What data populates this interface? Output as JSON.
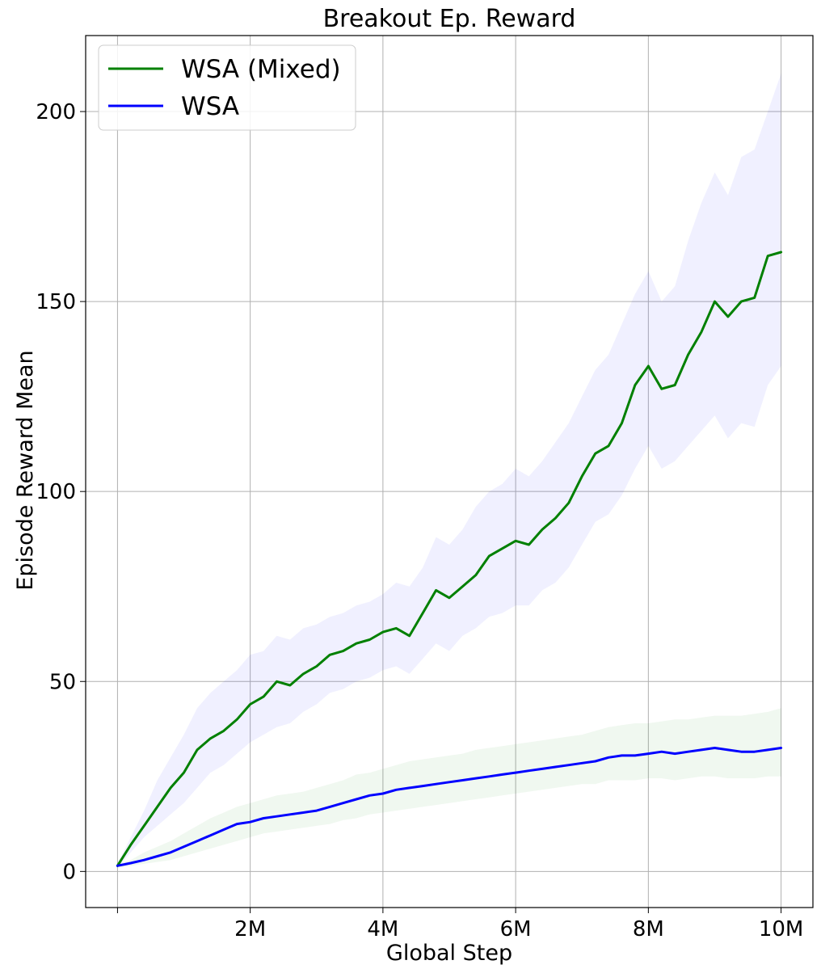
{
  "chart_data": {
    "type": "line",
    "title": "Breakout Ep. Reward",
    "xlabel": "Global Step",
    "ylabel": "Episode Reward Mean",
    "xlim": [
      -0.48,
      10.48
    ],
    "ylim": [
      -9.5,
      220
    ],
    "x_ticks": [
      {
        "value": 0,
        "label": ""
      },
      {
        "value": 2,
        "label": "2M"
      },
      {
        "value": 4,
        "label": "4M"
      },
      {
        "value": 6,
        "label": "6M"
      },
      {
        "value": 8,
        "label": "8M"
      },
      {
        "value": 10,
        "label": "10M"
      }
    ],
    "y_ticks": [
      {
        "value": 0,
        "label": "0"
      },
      {
        "value": 50,
        "label": "50"
      },
      {
        "value": 100,
        "label": "100"
      },
      {
        "value": 150,
        "label": "150"
      },
      {
        "value": 200,
        "label": "200"
      }
    ],
    "grid": true,
    "legend": {
      "position": "top-left"
    },
    "series": [
      {
        "name": "WSA (Mixed)",
        "color": "#008000",
        "band_color": "#0000ff",
        "band_opacity": 0.06,
        "x": [
          0,
          0.2,
          0.4,
          0.6,
          0.8,
          1.0,
          1.2,
          1.4,
          1.6,
          1.8,
          2.0,
          2.2,
          2.4,
          2.6,
          2.8,
          3.0,
          3.2,
          3.4,
          3.6,
          3.8,
          4.0,
          4.2,
          4.4,
          4.6,
          4.8,
          5.0,
          5.2,
          5.4,
          5.6,
          5.8,
          6.0,
          6.2,
          6.4,
          6.6,
          6.8,
          7.0,
          7.2,
          7.4,
          7.6,
          7.8,
          8.0,
          8.2,
          8.4,
          8.6,
          8.8,
          9.0,
          9.2,
          9.4,
          9.6,
          9.8,
          10.0
        ],
        "y": [
          1.5,
          7,
          12,
          17,
          22,
          26,
          32,
          35,
          37,
          40,
          44,
          46,
          50,
          49,
          52,
          54,
          57,
          58,
          60,
          61,
          63,
          64,
          62,
          68,
          74,
          72,
          75,
          78,
          83,
          85,
          87,
          86,
          90,
          93,
          97,
          104,
          110,
          112,
          118,
          128,
          133,
          127,
          128,
          136,
          142,
          150,
          146,
          150,
          151,
          162,
          163
        ],
        "upper": [
          2,
          9,
          16,
          24,
          30,
          36,
          43,
          47,
          50,
          53,
          57,
          58,
          62,
          61,
          64,
          65,
          67,
          68,
          70,
          71,
          73,
          76,
          75,
          80,
          88,
          86,
          90,
          96,
          100,
          102,
          106,
          104,
          108,
          113,
          118,
          125,
          132,
          136,
          144,
          152,
          158,
          150,
          154,
          166,
          176,
          184,
          178,
          188,
          190,
          200,
          210
        ],
        "lower": [
          1,
          5,
          9,
          12,
          15,
          18,
          22,
          26,
          28,
          31,
          34,
          36,
          38,
          39,
          42,
          44,
          47,
          48,
          50,
          51,
          53,
          54,
          52,
          56,
          60,
          58,
          62,
          64,
          67,
          68,
          70,
          70,
          74,
          76,
          80,
          86,
          92,
          94,
          99,
          106,
          112,
          106,
          108,
          112,
          116,
          120,
          114,
          118,
          117,
          128,
          133
        ]
      },
      {
        "name": "WSA",
        "color": "#0000ff",
        "band_color": "#008000",
        "band_opacity": 0.06,
        "x": [
          0,
          0.2,
          0.4,
          0.6,
          0.8,
          1.0,
          1.2,
          1.4,
          1.6,
          1.8,
          2.0,
          2.2,
          2.4,
          2.6,
          2.8,
          3.0,
          3.2,
          3.4,
          3.6,
          3.8,
          4.0,
          4.2,
          4.4,
          4.6,
          4.8,
          5.0,
          5.2,
          5.4,
          5.6,
          5.8,
          6.0,
          6.2,
          6.4,
          6.6,
          6.8,
          7.0,
          7.2,
          7.4,
          7.6,
          7.8,
          8.0,
          8.2,
          8.4,
          8.6,
          8.8,
          9.0,
          9.2,
          9.4,
          9.6,
          9.8,
          10.0
        ],
        "y": [
          1.5,
          2.2,
          3.0,
          4.0,
          5.0,
          6.5,
          8.0,
          9.5,
          11.0,
          12.5,
          13.0,
          14.0,
          14.5,
          15.0,
          15.5,
          16.0,
          17.0,
          18.0,
          19.0,
          20.0,
          20.5,
          21.5,
          22.0,
          22.5,
          23.0,
          23.5,
          24.0,
          24.5,
          25.0,
          25.5,
          26.0,
          26.5,
          27.0,
          27.5,
          28.0,
          28.5,
          29.0,
          30.0,
          30.5,
          30.5,
          31.0,
          31.5,
          31.0,
          31.5,
          32.0,
          32.5,
          32.0,
          31.5,
          31.5,
          32.0,
          32.5
        ],
        "upper": [
          2,
          3,
          5,
          6.5,
          8,
          10,
          12,
          14,
          15.5,
          17,
          18,
          19,
          20,
          20.5,
          21,
          22,
          23,
          24,
          25.5,
          26,
          27,
          28,
          29,
          29.5,
          30,
          30.5,
          31,
          32,
          32.5,
          33,
          33.5,
          34,
          34.5,
          35,
          35.5,
          36,
          37,
          38,
          38.5,
          39,
          39,
          39.5,
          40,
          40,
          40.5,
          41,
          41,
          41,
          41.5,
          42,
          43
        ],
        "lower": [
          1,
          1.5,
          2,
          2.5,
          3,
          4,
          5,
          6,
          7,
          8,
          9,
          10,
          10.5,
          11,
          11.5,
          12,
          12.5,
          13.5,
          14,
          15,
          15.5,
          16,
          16.5,
          17,
          17.5,
          18,
          18.5,
          19,
          19.5,
          20,
          20.5,
          21,
          21.5,
          22,
          22.5,
          23,
          23,
          24,
          24,
          24,
          24.5,
          24.5,
          24,
          24.5,
          25,
          25,
          24.5,
          24.5,
          24.5,
          25,
          25
        ]
      }
    ]
  }
}
